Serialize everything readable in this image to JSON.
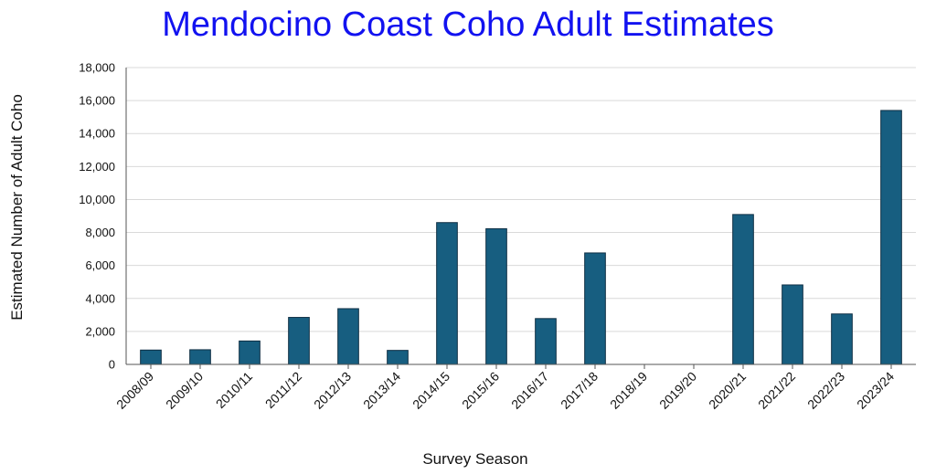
{
  "chart_data": {
    "type": "bar",
    "title": "Mendocino Coast Coho Adult Estimates",
    "xlabel": "Survey Season",
    "ylabel": "Estimated Number of Adult Coho",
    "categories": [
      "2008/09",
      "2009/10",
      "2010/11",
      "2011/12",
      "2012/13",
      "2013/14",
      "2014/15",
      "2015/16",
      "2016/17",
      "2017/18",
      "2018/19",
      "2019/20",
      "2020/21",
      "2021/22",
      "2022/23",
      "2023/24"
    ],
    "values": [
      870,
      890,
      1420,
      2850,
      3380,
      850,
      8600,
      8230,
      2780,
      6760,
      0,
      0,
      9090,
      4820,
      3060,
      15400
    ],
    "ylim": [
      0,
      18000
    ],
    "yticks": [
      0,
      2000,
      4000,
      6000,
      8000,
      10000,
      12000,
      14000,
      16000,
      18000
    ],
    "grid": true,
    "bar_color": "#175e80"
  }
}
